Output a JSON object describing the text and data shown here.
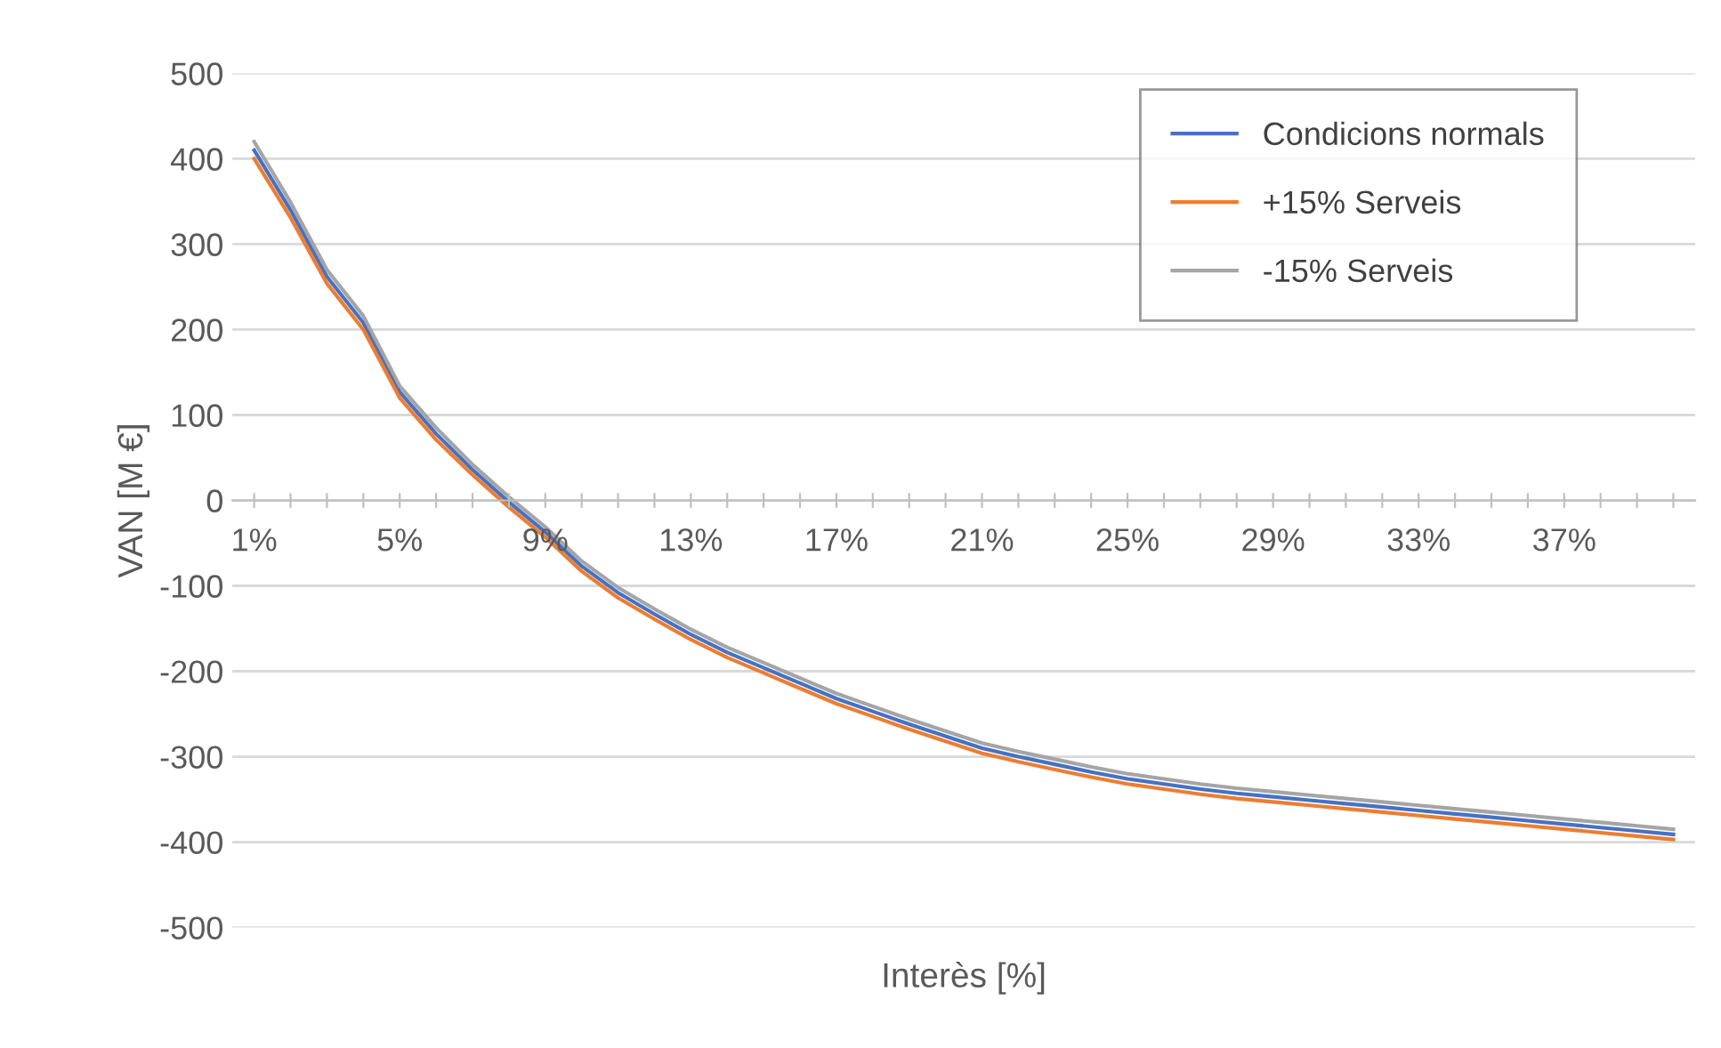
{
  "chart_data": {
    "type": "line",
    "xlabel": "Interès [%]",
    "ylabel": "VAN [M €]",
    "categories": [
      "1%",
      null,
      null,
      null,
      "5%",
      null,
      null,
      null,
      "9%",
      null,
      null,
      null,
      "13%",
      null,
      null,
      null,
      "17%",
      null,
      null,
      null,
      "21%",
      null,
      null,
      null,
      "25%",
      null,
      null,
      null,
      "29%",
      null,
      null,
      null,
      "33%",
      null,
      null,
      null,
      "37%",
      null,
      null,
      null
    ],
    "series": [
      {
        "name": "Condicions normals",
        "color": "#4472c4",
        "values": [
          410,
          340,
          262,
          208,
          127,
          78,
          36,
          -2,
          -37,
          -77,
          -108,
          -133,
          -157,
          -178,
          -196,
          -214,
          -232,
          -247,
          -262,
          -276,
          -290,
          -300,
          -309,
          -318,
          -326,
          -332,
          -338,
          -343,
          -347,
          -351,
          -355,
          -359,
          -363,
          -367,
          -371,
          -375,
          -379,
          -383,
          -387,
          -391
        ]
      },
      {
        "name": "+15% Serveis",
        "color": "#ed7d31",
        "values": [
          400,
          331,
          254,
          200,
          120,
          71,
          30,
          -8,
          -43,
          -83,
          -114,
          -139,
          -163,
          -184,
          -202,
          -220,
          -238,
          -253,
          -268,
          -282,
          -296,
          -306,
          -315,
          -324,
          -332,
          -338,
          -344,
          -349,
          -353,
          -357,
          -361,
          -365,
          -369,
          -373,
          -377,
          -381,
          -385,
          -389,
          -393,
          -397
        ]
      },
      {
        "name": "-15% Serveis",
        "color": "#a5a5a5",
        "values": [
          420,
          349,
          270,
          216,
          134,
          85,
          42,
          4,
          -31,
          -71,
          -102,
          -127,
          -151,
          -172,
          -190,
          -208,
          -226,
          -241,
          -256,
          -270,
          -284,
          -294,
          -303,
          -312,
          -320,
          -326,
          -332,
          -337,
          -341,
          -345,
          -349,
          -353,
          -357,
          -361,
          -365,
          -369,
          -373,
          -377,
          -381,
          -385
        ]
      }
    ],
    "ylim": [
      -500,
      500
    ],
    "yticks": [
      -500,
      -400,
      -300,
      -200,
      -100,
      0,
      100,
      200,
      300,
      400,
      500
    ],
    "grid": "y",
    "legend": "top right",
    "marker": "none",
    "line_style": "solid"
  }
}
